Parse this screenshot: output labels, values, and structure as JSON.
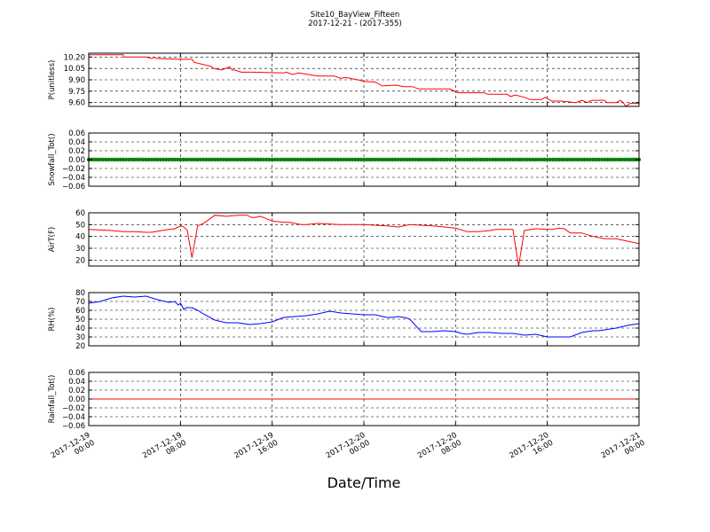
{
  "figure": {
    "title": "Site10_BayView_Fifteen",
    "subtitle": "2017-12-21 - (2017-355)",
    "xlabel": "Date/Time"
  },
  "chart_data": [
    {
      "type": "line",
      "ylabel": "P(unitless)",
      "ylim": [
        9.55,
        10.25
      ],
      "yticks": [
        "10.20",
        "10.05",
        "9.90",
        "9.75",
        "9.60"
      ],
      "ytick_values": [
        10.2,
        10.05,
        9.9,
        9.75,
        9.6
      ],
      "xticks": [
        "2017-12-19\n00:00",
        "2017-12-19\n08:00",
        "2017-12-19\n16:00",
        "2017-12-20\n00:00",
        "2017-12-20\n08:00",
        "2017-12-20\n16:00",
        "2017-12-21\n00:00"
      ],
      "xlim": [
        0,
        48
      ],
      "grid": true,
      "series": [
        {
          "color": "#ff0000",
          "x": [
            0,
            0.8,
            3,
            3.1,
            5,
            5.5,
            5.7,
            5.9,
            6,
            6.2,
            8,
            9,
            9.2,
            10.6,
            10.9,
            11.6,
            12.3,
            12.5,
            12.7,
            13.3,
            14.2,
            17,
            17.2,
            17.8,
            18.3,
            20,
            20.6,
            21.4,
            22,
            22.4,
            23.5,
            24,
            25,
            25.6,
            26.8,
            27.5,
            28.2,
            28.8,
            29.1,
            29.5,
            31.5,
            32.2,
            34.5,
            34.8,
            36.5,
            36.8,
            37.2,
            38,
            38.5,
            39.5,
            39.8,
            40.4,
            40.8,
            41.2,
            42.5,
            43,
            43.5,
            43.7,
            44,
            44.5,
            45,
            45.2,
            46,
            46.4,
            46.6,
            46.9,
            47.2,
            48
          ],
          "y": [
            10.23,
            10.23,
            10.23,
            10.2,
            10.2,
            10.18,
            10.2,
            10.18,
            10.18,
            10.18,
            10.17,
            10.17,
            10.13,
            10.08,
            10.05,
            10.03,
            10.07,
            10.03,
            10.03,
            10.0,
            10.0,
            9.99,
            10.0,
            9.97,
            9.99,
            9.95,
            9.95,
            9.95,
            9.92,
            9.93,
            9.9,
            9.88,
            9.87,
            9.82,
            9.83,
            9.81,
            9.81,
            9.78,
            9.78,
            9.78,
            9.78,
            9.73,
            9.73,
            9.71,
            9.71,
            9.68,
            9.7,
            9.67,
            9.64,
            9.64,
            9.67,
            9.62,
            9.62,
            9.62,
            9.6,
            9.63,
            9.6,
            9.62,
            9.63,
            9.63,
            9.63,
            9.6,
            9.6,
            9.63,
            9.6,
            9.55,
            9.59,
            9.59
          ]
        }
      ]
    },
    {
      "type": "scatter",
      "ylabel": "Snowfall_Tot()",
      "ylim": [
        -0.06,
        0.06
      ],
      "yticks": [
        "0.06",
        "0.04",
        "0.02",
        "0.00",
        "−0.02",
        "−0.04",
        "−0.06"
      ],
      "ytick_values": [
        0.06,
        0.04,
        0.02,
        0.0,
        -0.02,
        -0.04,
        -0.06
      ],
      "xlim": [
        0,
        48
      ],
      "grid": true,
      "series": [
        {
          "color": "#008000",
          "x_start": 0,
          "x_end": 48,
          "x_step": 0.25,
          "y_constant": 0.0
        }
      ]
    },
    {
      "type": "line",
      "ylabel": "AirT(F)",
      "ylim": [
        15,
        60
      ],
      "yticks": [
        "60",
        "50",
        "40",
        "30",
        "20"
      ],
      "ytick_values": [
        60,
        50,
        40,
        30,
        20
      ],
      "xlim": [
        0,
        48
      ],
      "grid": true,
      "series": [
        {
          "color": "#ff0000",
          "x": [
            0,
            2,
            3,
            4,
            5,
            5.5,
            6,
            7,
            7.5,
            7.8,
            8,
            8.05,
            8.3,
            8.6,
            9,
            9.5,
            10,
            11,
            12,
            13,
            13.4,
            13.8,
            14.2,
            14.5,
            15,
            16,
            16.5,
            17,
            17.5,
            18,
            18.5,
            19,
            20,
            22,
            24,
            26,
            27,
            28,
            30,
            31,
            32,
            33,
            34,
            35,
            35.5,
            36,
            37,
            37.5,
            38,
            39,
            40,
            40.5,
            41,
            41.5,
            42,
            43,
            44,
            45,
            46,
            48
          ],
          "y": [
            46,
            45,
            44,
            44,
            43.5,
            43.5,
            44.5,
            46,
            46.5,
            48,
            48.5,
            49,
            48,
            45,
            22,
            49,
            51,
            58,
            57,
            58,
            58,
            58,
            56,
            56,
            57,
            53,
            52.5,
            52,
            52,
            51,
            50,
            50,
            51,
            50,
            50,
            49,
            48,
            50,
            49,
            48,
            47,
            44,
            44,
            45,
            46,
            46,
            46,
            15,
            45,
            46.5,
            46,
            46,
            47,
            46.5,
            43,
            43,
            40,
            38,
            38,
            34
          ]
        }
      ]
    },
    {
      "type": "line",
      "ylabel": "RH(%)",
      "ylim": [
        20,
        80
      ],
      "yticks": [
        "80",
        "70",
        "60",
        "50",
        "40",
        "30",
        "20"
      ],
      "ytick_values": [
        80,
        70,
        60,
        50,
        40,
        30,
        20
      ],
      "xlim": [
        0,
        48
      ],
      "grid": true,
      "series": [
        {
          "color": "#0000ff",
          "x": [
            0,
            1,
            2,
            3,
            4,
            5,
            6,
            7,
            7.5,
            7.8,
            8,
            8.3,
            8.5,
            9,
            9.5,
            10,
            11,
            12,
            13,
            14,
            15,
            16,
            17,
            18,
            19,
            20,
            21,
            22,
            23,
            24,
            25,
            26,
            26.5,
            27,
            27.5,
            27.8,
            28,
            29,
            30,
            31,
            32,
            32.5,
            33,
            34,
            35,
            36,
            37,
            38,
            39,
            40,
            41,
            42,
            43,
            44,
            44.5,
            45,
            46,
            47,
            48
          ],
          "y": [
            68,
            70,
            74,
            76,
            75,
            76,
            72,
            69,
            70,
            66,
            68,
            61,
            63,
            63,
            60,
            56,
            49,
            46,
            46,
            44,
            45,
            47,
            52,
            53,
            54,
            56,
            59,
            57,
            56,
            55,
            55,
            52,
            52,
            53,
            52,
            51,
            50,
            36,
            36,
            37,
            36,
            34,
            33,
            35,
            35,
            34,
            34,
            32,
            33,
            30,
            30,
            30,
            35,
            37,
            37,
            38,
            40,
            43,
            45
          ]
        }
      ]
    },
    {
      "type": "line",
      "ylabel": "Rainfall_Tot()",
      "ylim": [
        -0.06,
        0.06
      ],
      "yticks": [
        "0.06",
        "0.04",
        "0.02",
        "0.00",
        "−0.02",
        "−0.04",
        "−0.06"
      ],
      "ytick_values": [
        0.06,
        0.04,
        0.02,
        0.0,
        -0.02,
        -0.04,
        -0.06
      ],
      "xlim": [
        0,
        48
      ],
      "grid": true,
      "series": [
        {
          "color": "#ff0000",
          "x": [
            0,
            48
          ],
          "y": [
            0,
            0
          ]
        }
      ]
    }
  ]
}
